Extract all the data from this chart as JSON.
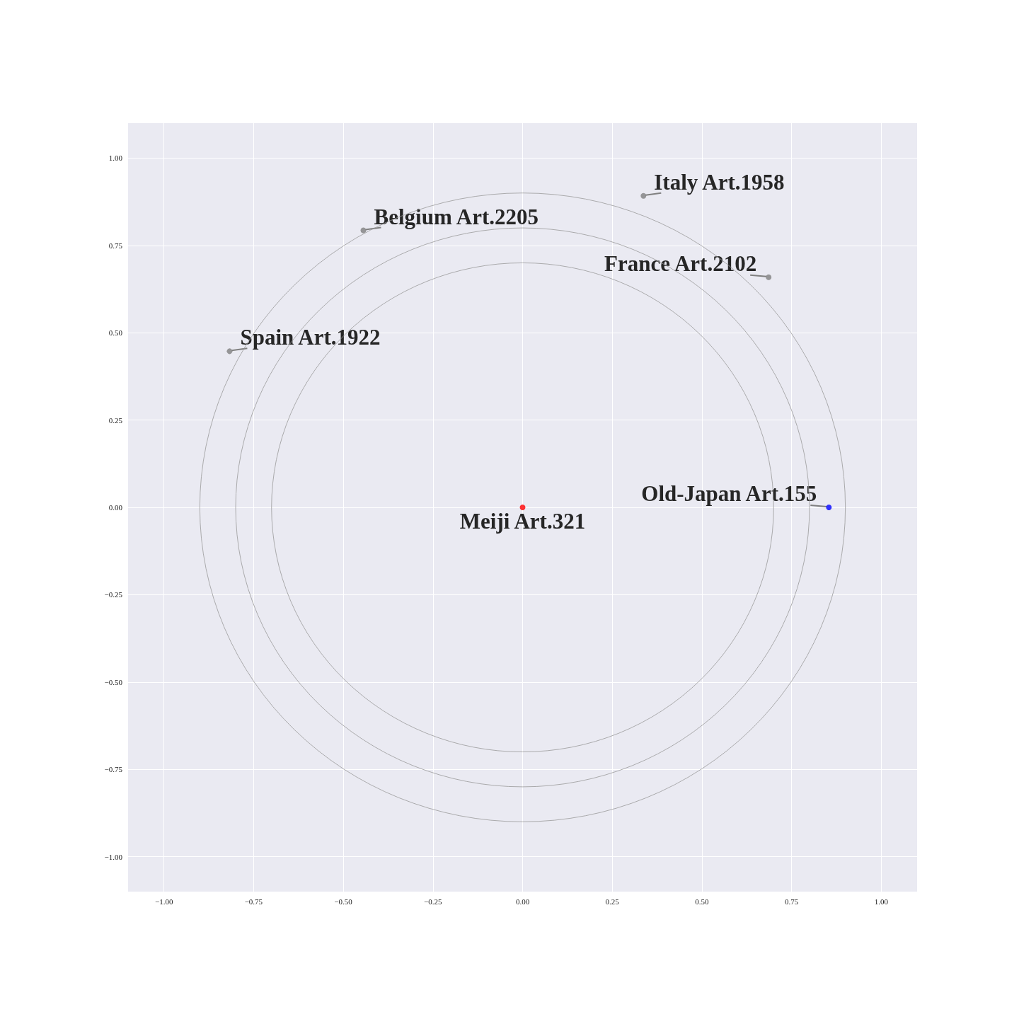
{
  "chart_data": {
    "type": "scatter",
    "xlim": [
      -1.1,
      1.1
    ],
    "ylim": [
      -1.1,
      1.1
    ],
    "xticks": [
      {
        "value": -1,
        "label": "−1.00"
      },
      {
        "value": -0.75,
        "label": "−0.75"
      },
      {
        "value": -0.5,
        "label": "−0.50"
      },
      {
        "value": -0.25,
        "label": "−0.25"
      },
      {
        "value": 0,
        "label": "0.00"
      },
      {
        "value": 0.25,
        "label": "0.25"
      },
      {
        "value": 0.5,
        "label": "0.50"
      },
      {
        "value": 0.75,
        "label": "0.75"
      },
      {
        "value": 1,
        "label": "1.00"
      }
    ],
    "yticks": [
      {
        "value": -1,
        "label": "−1.00"
      },
      {
        "value": -0.75,
        "label": "−0.75"
      },
      {
        "value": -0.5,
        "label": "−0.50"
      },
      {
        "value": -0.25,
        "label": "−0.25"
      },
      {
        "value": 0,
        "label": "0.00"
      },
      {
        "value": 0.25,
        "label": "0.25"
      },
      {
        "value": 0.5,
        "label": "0.50"
      },
      {
        "value": 0.75,
        "label": "0.75"
      },
      {
        "value": 1,
        "label": "1.00"
      }
    ],
    "grid": true,
    "marker": "circle",
    "x": [
      0,
      0.854,
      0.337,
      -0.444,
      0.686,
      -0.817
    ],
    "values": [
      0,
      0,
      0.892,
      0.793,
      0.659,
      0.447
    ],
    "colors": [
      "#ff0000",
      "#0000ff",
      "#808080",
      "#808080",
      "#808080",
      "#808080"
    ],
    "annotations": [
      {
        "text": "Meiji Art.321",
        "x": 0,
        "y": 0
      },
      {
        "text": "Old-Japan Art.155",
        "x": 0.854,
        "y": 0
      },
      {
        "text": "Italy Art.1958",
        "x": 0.337,
        "y": 0.892
      },
      {
        "text": "Belgium Art.2205",
        "x": -0.444,
        "y": 0.793
      },
      {
        "text": "France Art.2102",
        "x": 0.686,
        "y": 0.659
      },
      {
        "text": "Spain Art.1922",
        "x": -0.817,
        "y": 0.447
      }
    ]
  }
}
